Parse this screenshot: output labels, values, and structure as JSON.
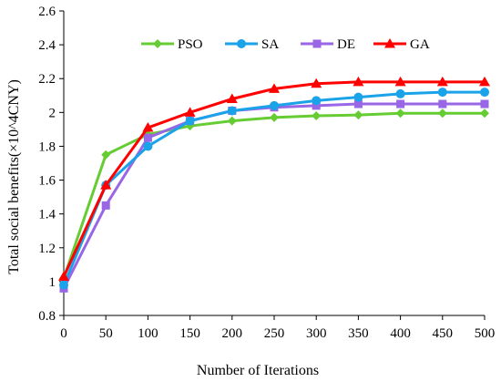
{
  "chart_data": {
    "type": "line",
    "title": "",
    "xlabel": "Number of Iterations",
    "ylabel": "Total social benefits(×10^4CNY)",
    "x": [
      0,
      50,
      100,
      150,
      200,
      250,
      300,
      350,
      400,
      450,
      500
    ],
    "xlim": [
      0,
      500
    ],
    "ylim": [
      0.8,
      2.6
    ],
    "x_ticks": [
      "0",
      "50",
      "100",
      "150",
      "200",
      "250",
      "300",
      "350",
      "400",
      "450",
      "500"
    ],
    "y_ticks": [
      "0.8",
      "1",
      "1.2",
      "1.4",
      "1.6",
      "1.8",
      "2",
      "2.2",
      "2.4",
      "2.6"
    ],
    "grid": false,
    "legend_position": "top",
    "series": [
      {
        "name": "PSO",
        "color": "#66cc33",
        "marker": "diamond",
        "values": [
          1.02,
          1.75,
          1.87,
          1.92,
          1.95,
          1.97,
          1.98,
          1.985,
          1.995,
          1.995,
          1.995
        ]
      },
      {
        "name": "SA",
        "color": "#1aa3e8",
        "marker": "circle",
        "values": [
          0.98,
          1.57,
          1.8,
          1.95,
          2.01,
          2.04,
          2.07,
          2.09,
          2.11,
          2.12,
          2.12
        ]
      },
      {
        "name": "DE",
        "color": "#9966e6",
        "marker": "square",
        "values": [
          0.96,
          1.45,
          1.85,
          1.95,
          2.01,
          2.03,
          2.04,
          2.05,
          2.05,
          2.05,
          2.05
        ]
      },
      {
        "name": "GA",
        "color": "#ff0000",
        "marker": "triangle",
        "values": [
          1.03,
          1.57,
          1.91,
          2.0,
          2.08,
          2.14,
          2.17,
          2.18,
          2.18,
          2.18,
          2.18
        ]
      }
    ]
  }
}
